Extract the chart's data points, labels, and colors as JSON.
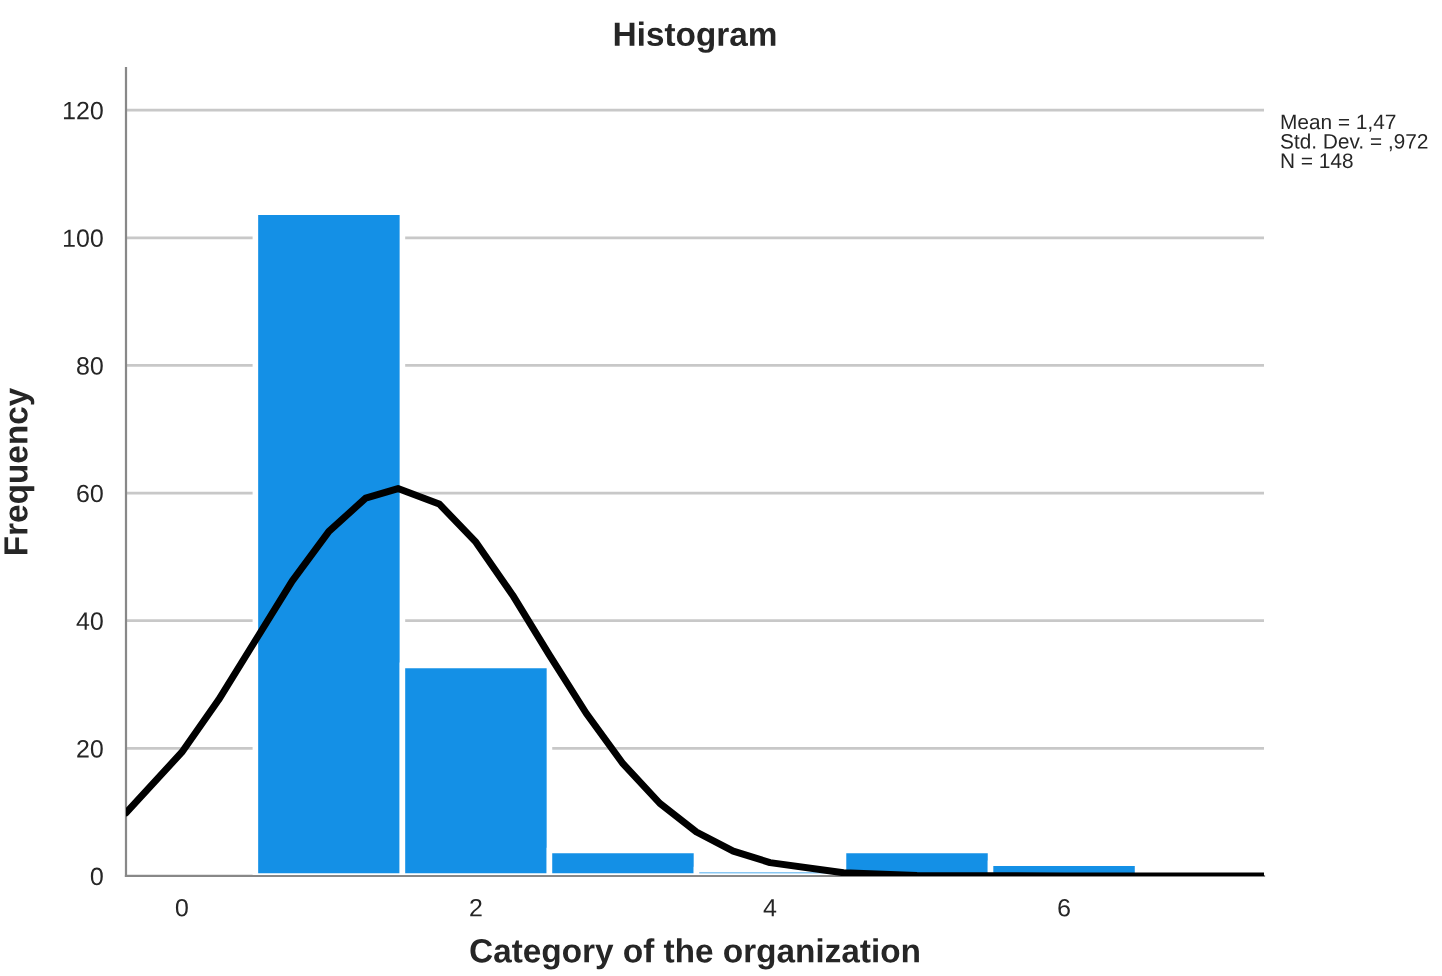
{
  "chart_data": {
    "type": "histogram",
    "title": "Histogram",
    "xlabel": "Category of the organization",
    "ylabel": "Frequency",
    "bins": [
      0.5,
      1.5,
      2.5,
      3.5,
      4.5,
      5.5,
      6.5
    ],
    "values": [
      104,
      33,
      4,
      1,
      4,
      2
    ],
    "color": "#1490e6",
    "series": [
      {
        "type": "line",
        "color": "#000000",
        "x": [
          -0.38,
          0,
          0.25,
          0.5,
          0.75,
          1.0,
          1.25,
          1.47,
          1.75,
          2.0,
          2.25,
          2.5,
          2.75,
          3.0,
          3.25,
          3.5,
          3.75,
          4.0,
          4.5,
          5.0,
          6.0,
          7.36
        ],
        "values": [
          9.9,
          19.4,
          27.6,
          36.9,
          46.2,
          54.0,
          59.2,
          60.7,
          58.3,
          52.3,
          44.0,
          34.6,
          25.5,
          17.6,
          11.4,
          6.9,
          3.9,
          2.1,
          0.5,
          0.1,
          0,
          0
        ]
      }
    ],
    "xlim": [
      -0.38,
      7.36
    ],
    "xticks": [
      0,
      2,
      4,
      6
    ],
    "ylim": [
      0,
      126.6
    ],
    "yticks": [
      0,
      20,
      40,
      60,
      80,
      100,
      120
    ],
    "grid": "y",
    "annotations": [
      "Mean = 1,47\nStd. Dev. = ,972\nN = 148"
    ]
  }
}
